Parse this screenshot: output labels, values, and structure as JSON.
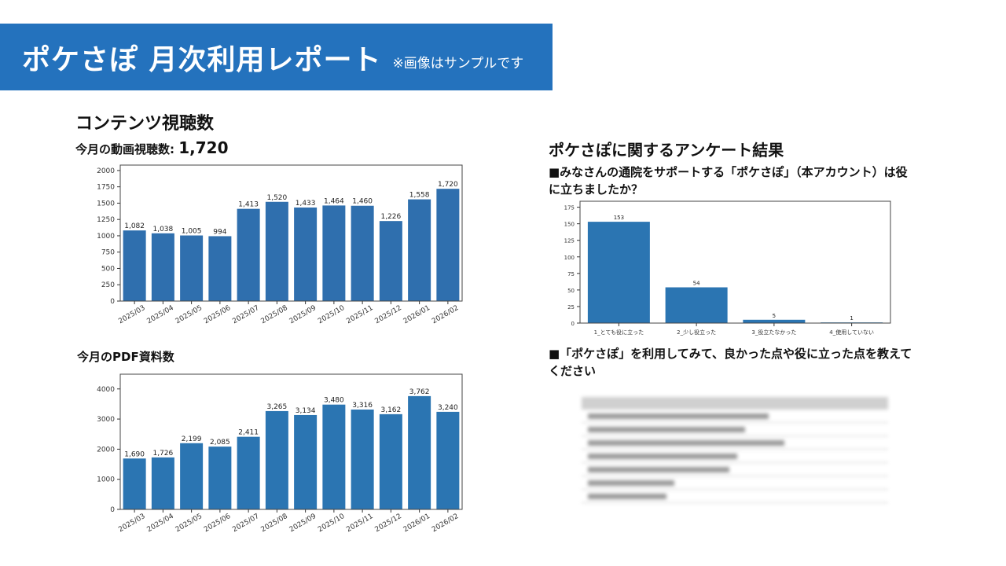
{
  "header": {
    "title": "ポケさぽ 月次利用レポート",
    "note": "※画像はサンプルです"
  },
  "views": {
    "heading": "コンテンツ視聴数",
    "video_label": "今月の動画視聴数:",
    "video_value": "1,720",
    "pdf_label": "今月のPDF資料数"
  },
  "survey": {
    "heading": "ポケさぽに関するアンケート結果",
    "q1": "■みなさんの通院をサポートする「ポケさぽ」（本アカウント）は役に立ちましたか？",
    "q2": "■「ポケさぽ」を利用してみて、良かった点や役に立った点を教えてください"
  },
  "colors": {
    "banner": "#2472bd",
    "bar": "#2f6fae",
    "bar2": "#2b75b2"
  },
  "chart_data": [
    {
      "type": "bar",
      "title": "今月の動画視聴数",
      "categories": [
        "2025/03",
        "2025/04",
        "2025/05",
        "2025/06",
        "2025/07",
        "2025/08",
        "2025/09",
        "2025/10",
        "2025/11",
        "2025/12",
        "2026/01",
        "2026/02"
      ],
      "values": [
        1082,
        1038,
        1005,
        994,
        1413,
        1520,
        1433,
        1464,
        1460,
        1226,
        1558,
        1720
      ],
      "labels": [
        "1,082",
        "1,038",
        "1,005",
        "994",
        "1,413",
        "1,520",
        "1,433",
        "1,464",
        "1,460",
        "1,226",
        "1,558",
        "1,720"
      ],
      "ylim": [
        0,
        2083
      ],
      "yticks": [
        0,
        250,
        500,
        750,
        1000,
        1250,
        1500,
        1750,
        2000
      ]
    },
    {
      "type": "bar",
      "title": "今月のPDF資料数",
      "categories": [
        "2025/03",
        "2025/04",
        "2025/05",
        "2025/06",
        "2025/07",
        "2025/08",
        "2025/09",
        "2025/10",
        "2025/11",
        "2025/12",
        "2026/01",
        "2026/02"
      ],
      "values": [
        1690,
        1726,
        2199,
        2085,
        2411,
        3265,
        3134,
        3480,
        3316,
        3162,
        3762,
        3240
      ],
      "labels": [
        "1,690",
        "1,726",
        "2,199",
        "2,085",
        "2,411",
        "3,265",
        "3,134",
        "3,480",
        "3,316",
        "3,162",
        "3,762",
        "3,240"
      ],
      "ylim": [
        0,
        4490
      ],
      "yticks": [
        0,
        1000,
        2000,
        3000,
        4000
      ]
    },
    {
      "type": "bar",
      "title": "アンケート結果",
      "categories": [
        "1_とても役に立った",
        "2_少し役立った",
        "3_役立たなかった",
        "4_使用していない"
      ],
      "values": [
        153,
        54,
        5,
        1
      ],
      "labels": [
        "153",
        "54",
        "5",
        "1"
      ],
      "ylim": [
        0,
        184
      ],
      "yticks": [
        0,
        25,
        50,
        75,
        100,
        125,
        150,
        175
      ]
    }
  ]
}
